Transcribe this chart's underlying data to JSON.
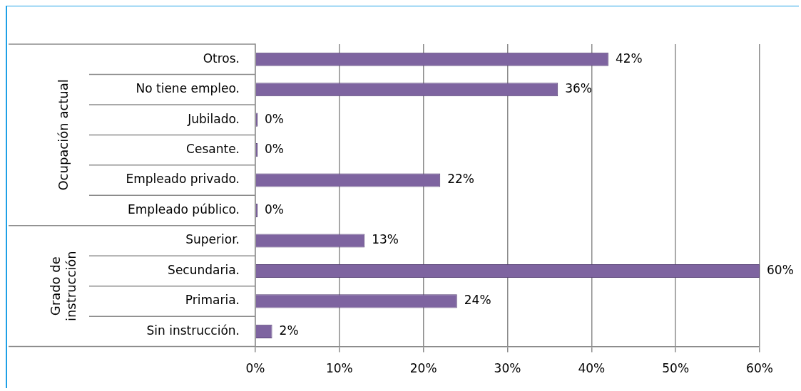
{
  "chart_data": {
    "type": "bar",
    "orientation": "horizontal",
    "categories": [
      "Otros.",
      "No tiene empleo.",
      "Jubilado.",
      "Cesante.",
      "Empleado privado.",
      "Empleado público.",
      "Superior.",
      "Secundaria.",
      "Primaria.",
      "Sin instrucción."
    ],
    "values": [
      42,
      36,
      0,
      0,
      22,
      0,
      13,
      60,
      24,
      2
    ],
    "value_labels": [
      "42%",
      "36%",
      "0%",
      "0%",
      "22%",
      "0%",
      "13%",
      "60%",
      "24%",
      "2%"
    ],
    "color": "#7e64a0",
    "xlim": [
      0,
      60
    ],
    "xticks": [
      {
        "value": 0,
        "label": "0%"
      },
      {
        "value": 10,
        "label": "10%"
      },
      {
        "value": 20,
        "label": "20%"
      },
      {
        "value": 30,
        "label": "30%"
      },
      {
        "value": 40,
        "label": "40%"
      },
      {
        "value": 50,
        "label": "50%"
      },
      {
        "value": 60,
        "label": "60%"
      }
    ],
    "grid": "x",
    "annotations": [
      "Ocupación actual",
      "Grado de instrucción"
    ]
  }
}
